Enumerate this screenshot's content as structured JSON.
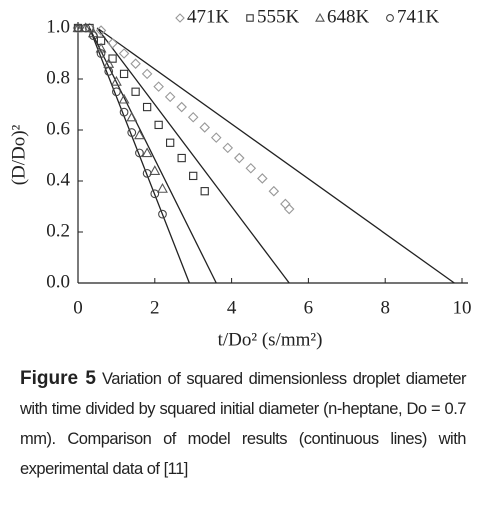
{
  "chart_data": {
    "type": "scatter",
    "xlabel": "t/Do² (s/mm²)",
    "ylabel": "(D/Do)²",
    "xlim": [
      0,
      10
    ],
    "xticks": [
      0,
      2,
      4,
      6,
      8,
      10
    ],
    "ylim": [
      0,
      1
    ],
    "yticks": [
      {
        "value": 0,
        "label": "0.0"
      },
      {
        "value": 0.2,
        "label": "0.2"
      },
      {
        "value": 0.4,
        "label": "0.4"
      },
      {
        "value": 0.6,
        "label": "0.6"
      },
      {
        "value": 0.8,
        "label": "0.8"
      },
      {
        "value": 1,
        "label": "1.0"
      }
    ],
    "legend": "top-right",
    "series": [
      {
        "name": "471K",
        "marker": "diamond",
        "color": "#999999",
        "x": [
          0,
          0.3,
          0.6,
          0.9,
          1.2,
          1.5,
          1.8,
          2.1,
          2.4,
          2.7,
          3.0,
          3.3,
          3.6,
          3.9,
          4.2,
          4.5,
          4.8,
          5.1,
          5.4,
          5.5
        ],
        "values": [
          1.0,
          1.0,
          0.99,
          0.94,
          0.9,
          0.86,
          0.82,
          0.77,
          0.73,
          0.69,
          0.65,
          0.61,
          0.57,
          0.53,
          0.49,
          0.45,
          0.41,
          0.36,
          0.31,
          0.29
        ]
      },
      {
        "name": "555K",
        "marker": "square",
        "color": "#333333",
        "x": [
          0,
          0.3,
          0.6,
          0.9,
          1.2,
          1.5,
          1.8,
          2.1,
          2.4,
          2.7,
          3.0,
          3.3
        ],
        "values": [
          1.0,
          1.0,
          0.95,
          0.88,
          0.82,
          0.75,
          0.69,
          0.62,
          0.55,
          0.49,
          0.42,
          0.36
        ]
      },
      {
        "name": "648K",
        "marker": "triangle",
        "color": "#555555",
        "x": [
          0,
          0.2,
          0.4,
          0.6,
          0.8,
          1.0,
          1.2,
          1.4,
          1.6,
          1.8,
          2.0,
          2.2
        ],
        "values": [
          1.0,
          1.0,
          0.98,
          0.92,
          0.86,
          0.79,
          0.72,
          0.65,
          0.58,
          0.51,
          0.44,
          0.37
        ]
      },
      {
        "name": "741K",
        "marker": "circle",
        "color": "#444444",
        "x": [
          0,
          0.2,
          0.4,
          0.6,
          0.8,
          1.0,
          1.2,
          1.4,
          1.6,
          1.8,
          2.0,
          2.2
        ],
        "values": [
          1.0,
          1.0,
          0.97,
          0.9,
          0.83,
          0.75,
          0.67,
          0.59,
          0.51,
          0.43,
          0.35,
          0.27
        ]
      }
    ],
    "model_lines": [
      {
        "x": [
          0.5,
          9.8
        ],
        "values": [
          1,
          0
        ],
        "color": "#222222"
      },
      {
        "x": [
          0.5,
          5.5
        ],
        "values": [
          1,
          0
        ],
        "color": "#222222"
      },
      {
        "x": [
          0.3,
          3.6
        ],
        "values": [
          1,
          0
        ],
        "color": "#222222"
      },
      {
        "x": [
          0.3,
          2.9
        ],
        "values": [
          1,
          0
        ],
        "color": "#222222"
      }
    ]
  },
  "caption": {
    "label": "Figure 5",
    "text": " Variation of squared dimensionless droplet diameter with time divided by squared initial diameter (n-heptane, Do = 0.7 mm). Comparison of model results (continuous lines) with experimental data of [11]"
  }
}
